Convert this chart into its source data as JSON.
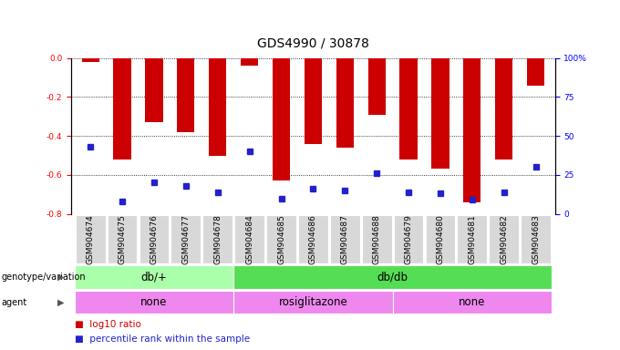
{
  "title": "GDS4990 / 30878",
  "samples": [
    "GSM904674",
    "GSM904675",
    "GSM904676",
    "GSM904677",
    "GSM904678",
    "GSM904684",
    "GSM904685",
    "GSM904686",
    "GSM904687",
    "GSM904688",
    "GSM904679",
    "GSM904680",
    "GSM904681",
    "GSM904682",
    "GSM904683"
  ],
  "log10_ratio": [
    -0.02,
    -0.52,
    -0.33,
    -0.38,
    -0.5,
    -0.04,
    -0.63,
    -0.44,
    -0.46,
    -0.29,
    -0.52,
    -0.57,
    -0.74,
    -0.52,
    -0.14
  ],
  "percentile": [
    43,
    8,
    20,
    18,
    14,
    40,
    10,
    16,
    15,
    26,
    14,
    13,
    9,
    14,
    30
  ],
  "ylim": [
    -0.8,
    0
  ],
  "pct_ylim": [
    0,
    100
  ],
  "yticks_left": [
    0,
    -0.2,
    -0.4,
    -0.6,
    -0.8
  ],
  "yticks_right": [
    0,
    25,
    50,
    75,
    100
  ],
  "bar_color": "#cc0000",
  "dot_color": "#2222cc",
  "genotype_groups": [
    {
      "label": "db/+",
      "start": 0,
      "end": 5,
      "color": "#aaffaa"
    },
    {
      "label": "db/db",
      "start": 5,
      "end": 15,
      "color": "#55dd55"
    }
  ],
  "agent_groups": [
    {
      "label": "none",
      "start": 0,
      "end": 5,
      "color": "#ee88ee"
    },
    {
      "label": "rosiglitazone",
      "start": 5,
      "end": 10,
      "color": "#ee88ee"
    },
    {
      "label": "none",
      "start": 10,
      "end": 15,
      "color": "#ee88ee"
    }
  ],
  "bar_width": 0.55,
  "title_fontsize": 10,
  "tick_fontsize": 6.5,
  "annot_fontsize": 8.5,
  "legend_fontsize": 7.5
}
